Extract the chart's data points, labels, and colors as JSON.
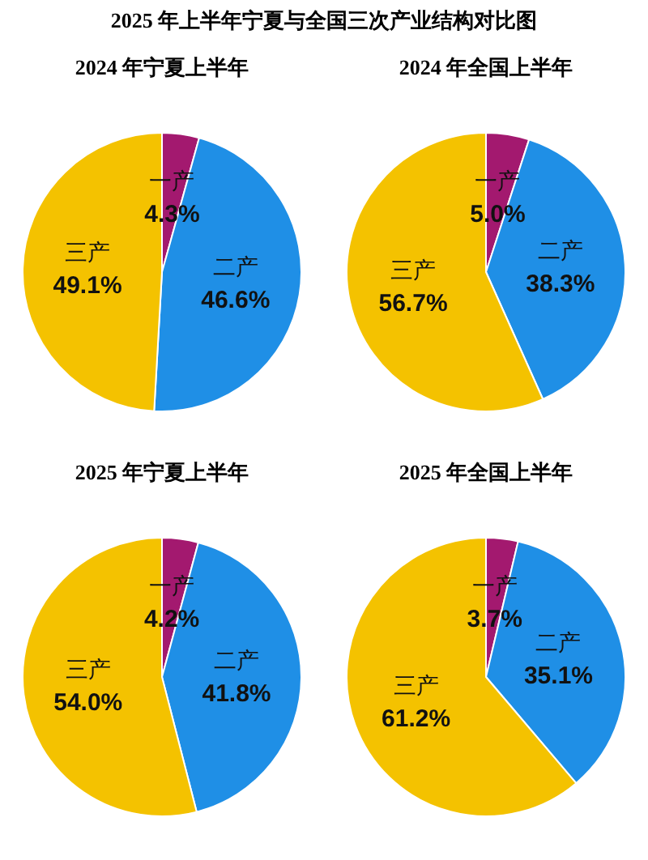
{
  "chart_data": [
    {
      "type": "pie",
      "title": "2025 年上半年宁夏与全国三次产业结构对比图",
      "subtitle": "2024 年宁夏上半年",
      "categories": [
        "一产",
        "二产",
        "三产"
      ],
      "values": [
        4.3,
        46.6,
        49.1
      ],
      "value_labels": [
        "4.3%",
        "46.6%",
        "49.1%"
      ],
      "colors": [
        "#a3196f",
        "#1f8fe6",
        "#f4c200"
      ]
    },
    {
      "type": "pie",
      "subtitle": "2024 年全国上半年",
      "categories": [
        "一产",
        "二产",
        "三产"
      ],
      "values": [
        5.0,
        38.3,
        56.7
      ],
      "value_labels": [
        "5.0%",
        "38.3%",
        "56.7%"
      ],
      "colors": [
        "#a3196f",
        "#1f8fe6",
        "#f4c200"
      ]
    },
    {
      "type": "pie",
      "subtitle": "2025 年宁夏上半年",
      "categories": [
        "一产",
        "二产",
        "三产"
      ],
      "values": [
        4.2,
        41.8,
        54.0
      ],
      "value_labels": [
        "4.2%",
        "41.8%",
        "54.0%"
      ],
      "colors": [
        "#a3196f",
        "#1f8fe6",
        "#f4c200"
      ]
    },
    {
      "type": "pie",
      "subtitle": "2025 年全国上半年",
      "categories": [
        "一产",
        "二产",
        "三产"
      ],
      "values": [
        3.7,
        35.1,
        61.2
      ],
      "value_labels": [
        "3.7%",
        "35.1%",
        "61.2%"
      ],
      "colors": [
        "#a3196f",
        "#1f8fe6",
        "#f4c200"
      ]
    }
  ]
}
